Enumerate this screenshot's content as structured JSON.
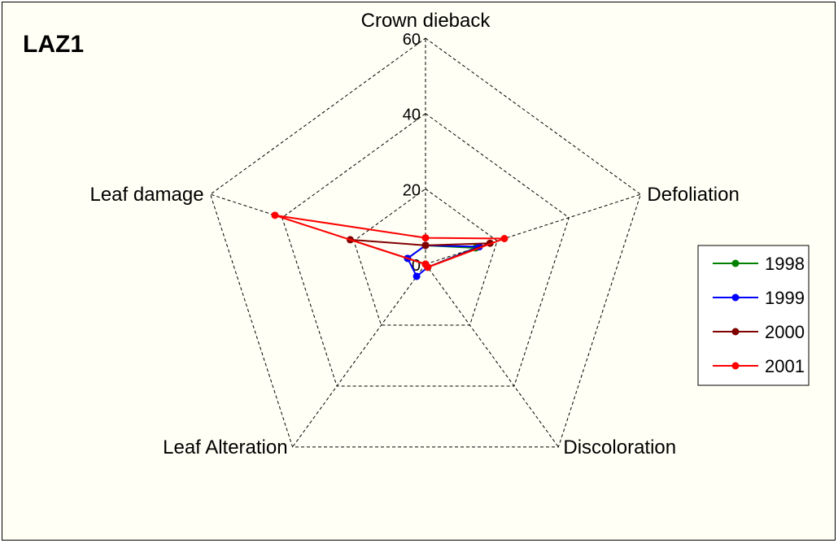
{
  "chart_data": {
    "type": "radar",
    "title": "LAZ1",
    "axes": [
      "Crown dieback",
      "Defoliation",
      "Discoloration",
      "Leaf Alteration",
      "Leaf damage"
    ],
    "rlim": [
      0,
      60
    ],
    "ticks": [
      {
        "value": 0,
        "label": "0"
      },
      {
        "value": 20,
        "label": "20"
      },
      {
        "value": 40,
        "label": "40"
      },
      {
        "value": 60,
        "label": "60"
      }
    ],
    "grid": true,
    "grid_style": "dashed",
    "legend_position": "right",
    "series": [
      {
        "name": "1998",
        "color": "#008000",
        "values": [
          5,
          14,
          1,
          0,
          5
        ]
      },
      {
        "name": "1999",
        "color": "#0000ff",
        "values": [
          5,
          15,
          1,
          4,
          5
        ]
      },
      {
        "name": "2000",
        "color": "#800000",
        "values": [
          5,
          18,
          1,
          0,
          21
        ]
      },
      {
        "name": "2001",
        "color": "#ff0000",
        "values": [
          7,
          22,
          1,
          0,
          42
        ]
      }
    ]
  }
}
